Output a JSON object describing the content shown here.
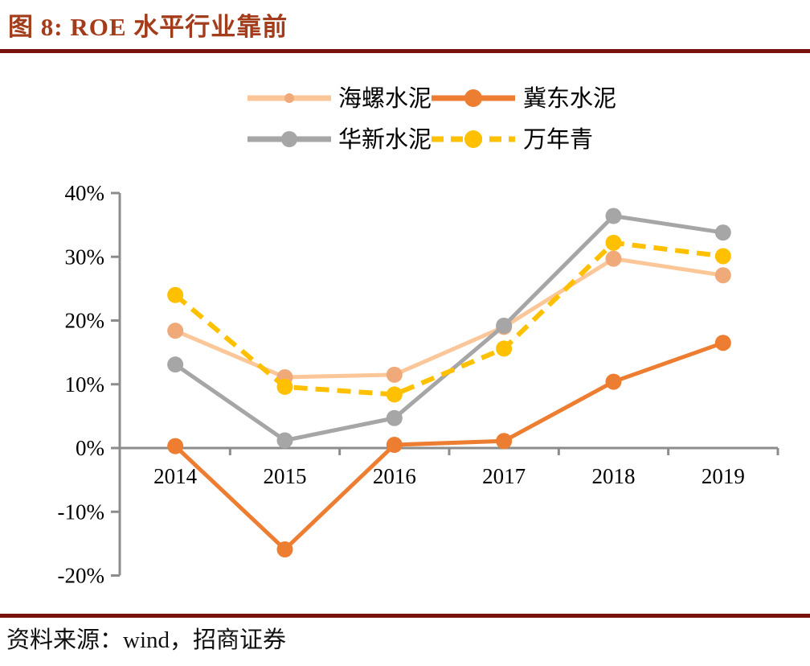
{
  "header": {
    "title": "图 8: ROE 水平行业靠前"
  },
  "footer": {
    "source": "资料来源：wind，招商证券"
  },
  "colors": {
    "title_text": "#A33C1A",
    "rule": "#78120C",
    "axis": "#8C8C8C",
    "label_text": "#000000",
    "background": "#FFFFFF"
  },
  "chart_data": {
    "type": "line",
    "title": "图 8: ROE 水平行业靠前",
    "categories": [
      "2014",
      "2015",
      "2016",
      "2017",
      "2018",
      "2019"
    ],
    "series": [
      {
        "name": "海螺水泥",
        "line_color": "#FBC799",
        "marker_color": "#F0A978",
        "dashed": false,
        "values": [
          18.4,
          11.1,
          11.5,
          19.0,
          29.7,
          27.1
        ]
      },
      {
        "name": "冀东水泥",
        "line_color": "#ED7D31",
        "marker_color": "#ED7D31",
        "dashed": false,
        "values": [
          0.3,
          -15.9,
          0.5,
          1.1,
          10.4,
          16.5
        ]
      },
      {
        "name": "华新水泥",
        "line_color": "#A6A6A6",
        "marker_color": "#A6A6A6",
        "dashed": false,
        "values": [
          13.1,
          1.2,
          4.7,
          19.2,
          36.4,
          33.8
        ]
      },
      {
        "name": "万年青",
        "line_color": "#FFC000",
        "marker_color": "#FFC000",
        "dashed": true,
        "values": [
          24.0,
          9.6,
          8.4,
          15.6,
          32.2,
          30.1
        ]
      }
    ],
    "y_axis": {
      "min": -20,
      "max": 40,
      "tick_step": 10,
      "unit": "percent",
      "tick_labels": [
        "40%",
        "30%",
        "20%",
        "10%",
        "0%",
        "-10%",
        "-20%"
      ]
    },
    "xlabel": "",
    "ylabel": "",
    "grid": false,
    "legend_position": "top"
  }
}
